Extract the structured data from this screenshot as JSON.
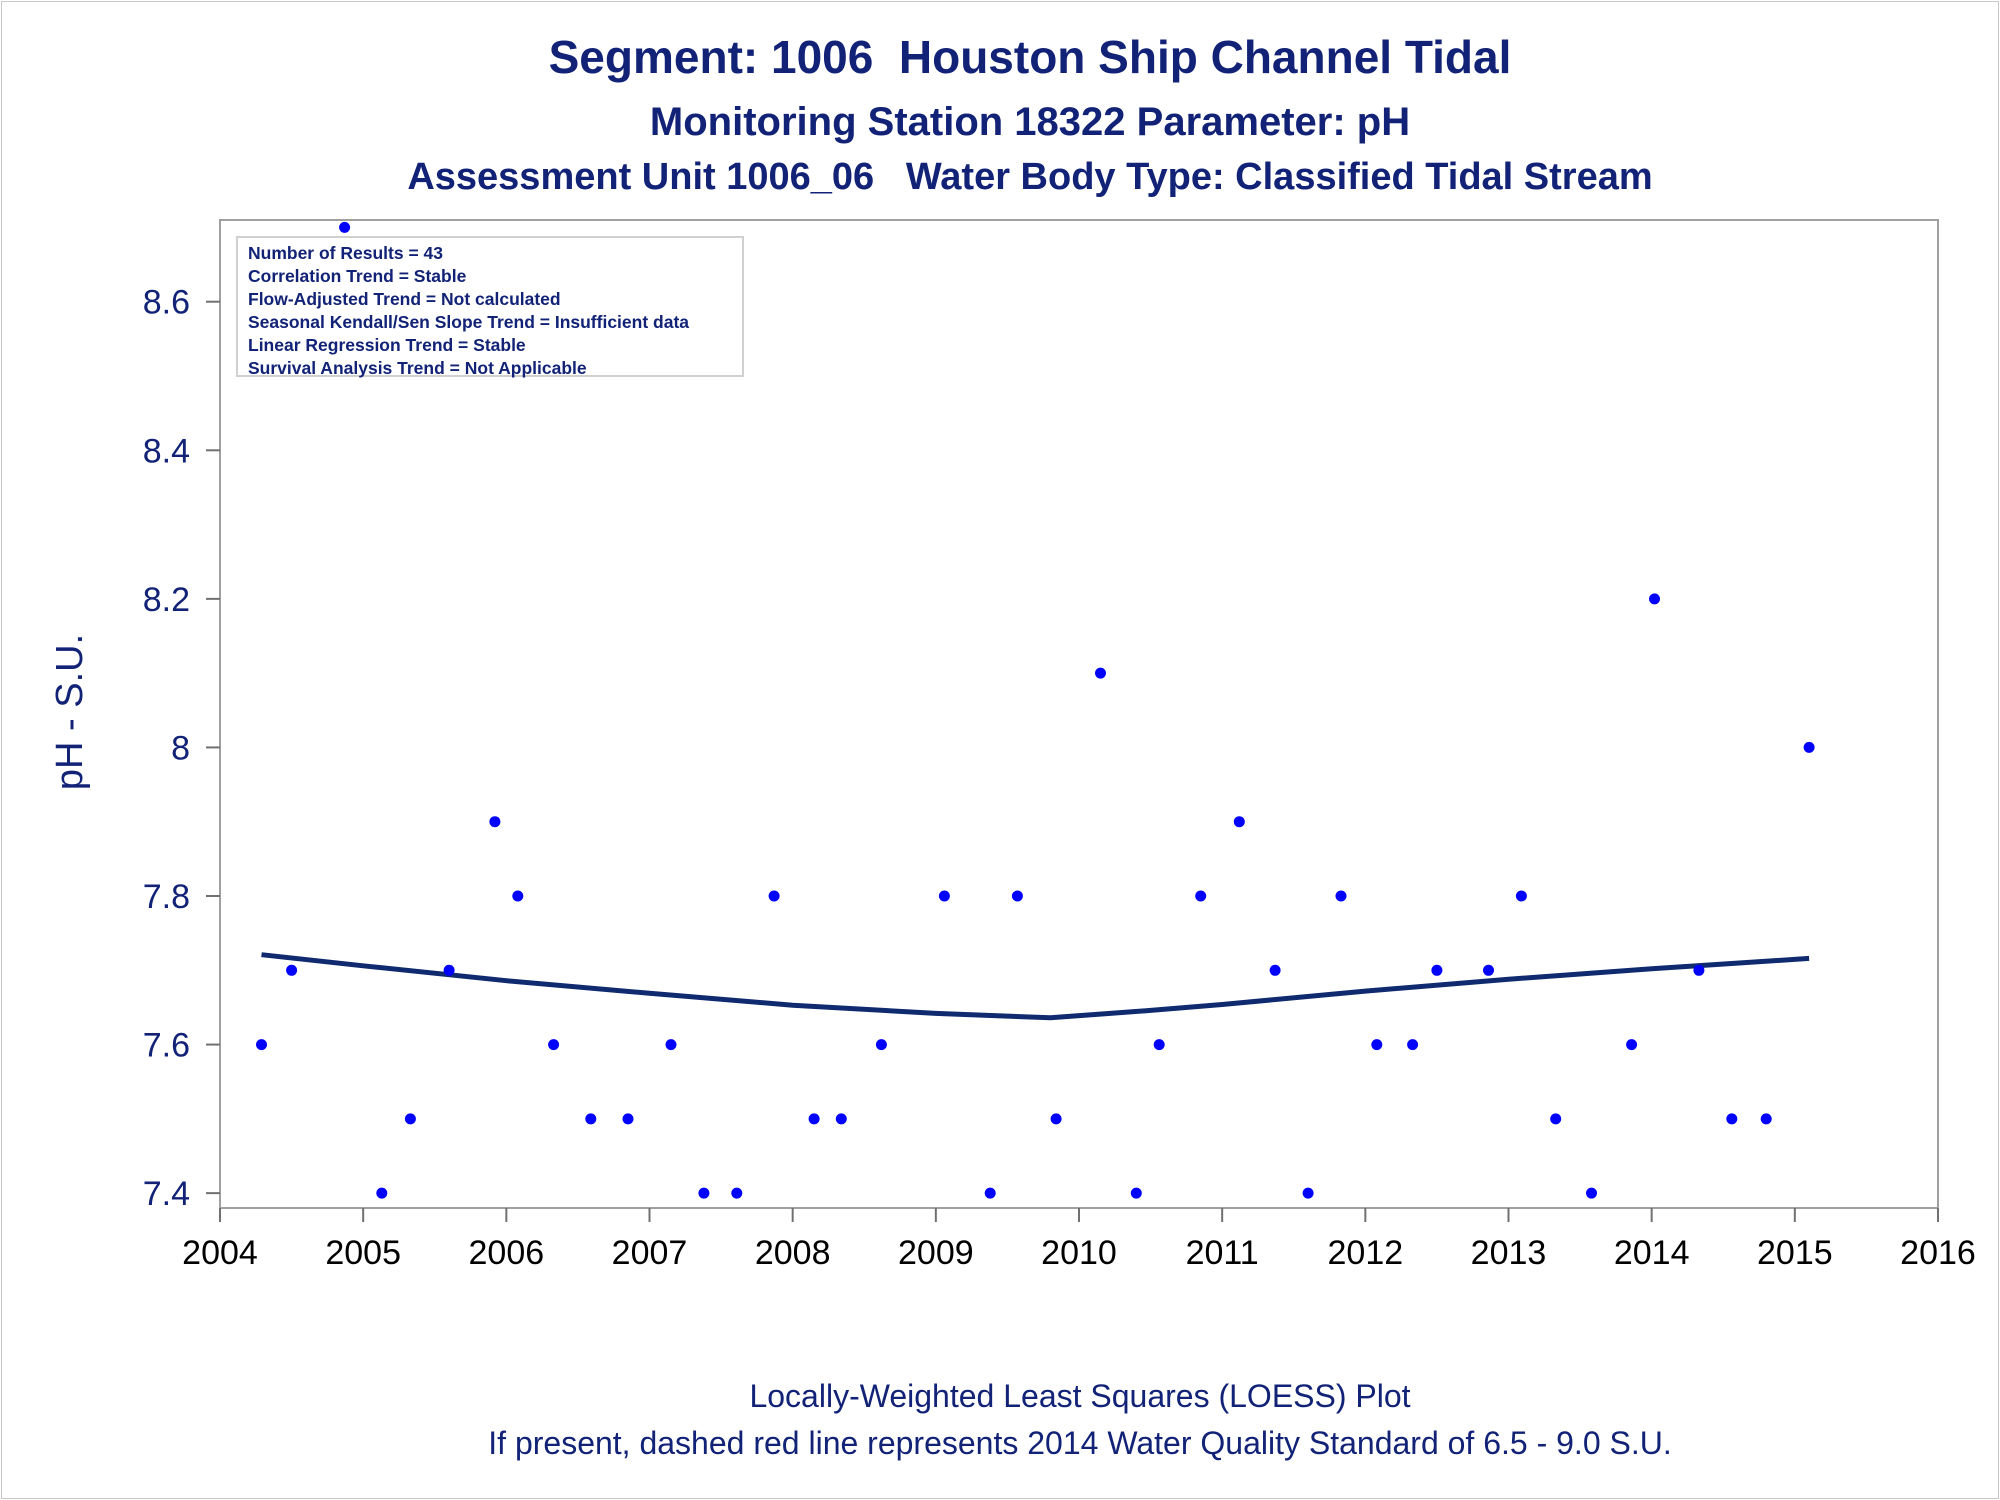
{
  "header": {
    "title": "Segment: 1006  Houston Ship Channel Tidal",
    "subtitle1": "Monitoring Station 18322 Parameter: pH",
    "subtitle2": "Assessment Unit 1006_06   Water Body Type: Classified Tidal Stream"
  },
  "stats": [
    "Number of Results = 43",
    "Correlation Trend = Stable",
    "Flow-Adjusted Trend = Not calculated",
    "Seasonal Kendall/Sen Slope Trend = Insufficient data",
    "Linear Regression Trend = Stable",
    "Survival Analysis Trend = Not Applicable"
  ],
  "footer": {
    "line1": "Locally-Weighted Least Squares (LOESS) Plot",
    "line2": "If present, dashed red line represents 2014 Water Quality Standard of 6.5 - 9.0 S.U."
  },
  "colors": {
    "text": "#112277",
    "points": "#0000ff",
    "loess": "#0f2a6e",
    "frame": "#a0a0a0"
  },
  "chart_data": {
    "type": "scatter",
    "ylabel": "pH - S.U.",
    "xlabel": "",
    "xlim": [
      2004,
      2016
    ],
    "ylim": [
      7.38,
      8.71
    ],
    "yticks": [
      "7.4",
      "7.6",
      "7.8",
      "8",
      "8.2",
      "8.4",
      "8.6"
    ],
    "xticks": [
      "2004",
      "2005",
      "2006",
      "2007",
      "2008",
      "2009",
      "2010",
      "2011",
      "2012",
      "2013",
      "2014",
      "2015",
      "2016"
    ],
    "grid": false,
    "series": [
      {
        "type": "scatter",
        "x": [
          2004.29,
          2004.5,
          2004.87,
          2005.13,
          2005.33,
          2005.6,
          2005.92,
          2006.08,
          2006.33,
          2006.59,
          2006.85,
          2007.15,
          2007.38,
          2007.61,
          2007.87,
          2008.15,
          2008.34,
          2008.62,
          2009.06,
          2009.38,
          2009.57,
          2009.84,
          2010.15,
          2010.4,
          2010.56,
          2010.85,
          2011.12,
          2011.37,
          2011.6,
          2011.83,
          2012.08,
          2012.33,
          2012.5,
          2012.86,
          2013.09,
          2013.33,
          2013.58,
          2013.86,
          2014.02,
          2014.33,
          2014.56,
          2014.8,
          2015.1
        ],
        "y": [
          7.6,
          7.7,
          8.7,
          7.4,
          7.5,
          7.7,
          7.9,
          7.8,
          7.6,
          7.5,
          7.5,
          7.6,
          7.4,
          7.4,
          7.8,
          7.5,
          7.5,
          7.6,
          7.8,
          7.4,
          7.8,
          7.5,
          8.1,
          7.4,
          7.6,
          7.8,
          7.9,
          7.7,
          7.4,
          7.8,
          7.6,
          7.6,
          7.7,
          7.7,
          7.8,
          7.5,
          7.4,
          7.6,
          8.2,
          7.7,
          7.5,
          7.5,
          8.0
        ]
      },
      {
        "type": "line",
        "x": [
          2004.29,
          2005.0,
          2006.0,
          2007.0,
          2008.0,
          2009.0,
          2009.8,
          2010.5,
          2011.0,
          2012.0,
          2013.0,
          2014.0,
          2015.1
        ],
        "y": [
          7.721,
          7.706,
          7.686,
          7.669,
          7.653,
          7.642,
          7.636,
          7.646,
          7.654,
          7.672,
          7.688,
          7.702,
          7.716
        ]
      }
    ]
  }
}
